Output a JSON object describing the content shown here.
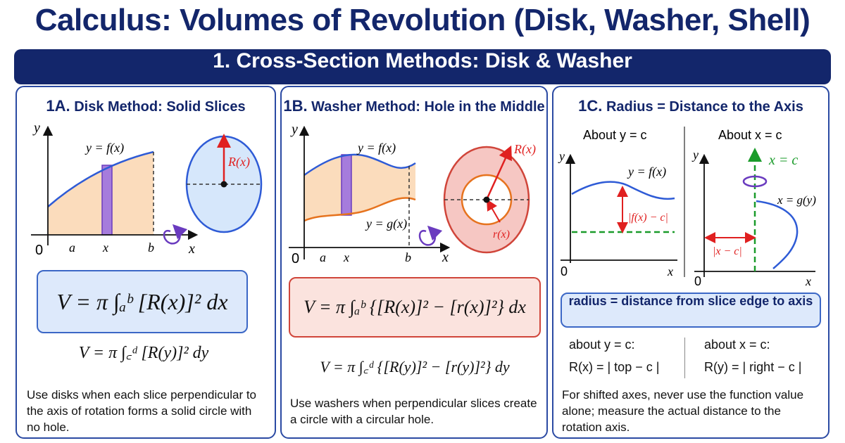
{
  "title": "Calculus: Volumes of Revolution (Disk, Washer, Shell)",
  "banner": "1. Cross-Section Methods: Disk & Washer",
  "colors": {
    "navy": "#13266b",
    "blue_curve": "#2e5bd6",
    "fill_orange": "#fbdcbc",
    "slice_purple": "#9b6fd6",
    "red": "#e02020",
    "green": "#1a9b2a"
  },
  "disk": {
    "num": "1A.",
    "heading": "Disk Method: Solid Slices",
    "y_axis": "y",
    "x_axis": "x",
    "curve_label": "y = f(x)",
    "origin": "0",
    "tick_a": "a",
    "tick_x": "x",
    "tick_b": "b",
    "radius_label": "R(x)",
    "formula_main": "V = π ∫ₐᵇ [R(x)]² dx",
    "formula_alt": "V = π ∫꜀ᵈ [R(y)]² dy",
    "note": "Use disks when each slice perpendicular to the axis of rotation forms a solid circle with no hole."
  },
  "washer": {
    "num": "1B.",
    "heading": "Washer Method: Hole in the Middle",
    "y_axis": "y",
    "x_axis": "x",
    "outer_label": "y = f(x)",
    "inner_label": "y = g(x)",
    "origin": "0",
    "tick_a": "a",
    "tick_x": "x",
    "tick_b": "b",
    "outer_radius": "R(x)",
    "inner_radius": "r(x)",
    "formula_main": "V = π ∫ₐᵇ {[R(x)]² − [r(x)]²} dx",
    "formula_alt": "V = π ∫꜀ᵈ {[R(y)]² − [r(y)]²} dy",
    "note": "Use washers when perpendicular slices create a circle with a circular hole."
  },
  "radius": {
    "num": "1C.",
    "heading": "Radius = Distance to the Axis",
    "left_title": "About y = c",
    "right_title": "About x = c",
    "left_curve": "y = f(x)",
    "left_dist": "|f(x) − c|",
    "right_axis": "x = c",
    "right_curve": "x = g(y)",
    "right_dist": "|x − c|",
    "y_axis": "y",
    "x_axis": "x",
    "origin": "0",
    "box": "radius = distance from slice edge to axis",
    "about_y_head": "about  y = c:",
    "about_y_formula": "R(x) = | top − c |",
    "about_x_head": "about  x = c:",
    "about_x_formula": "R(y) = | right − c |",
    "note": "For shifted axes, never use the function value alone; measure the actual distance to the rotation axis."
  }
}
